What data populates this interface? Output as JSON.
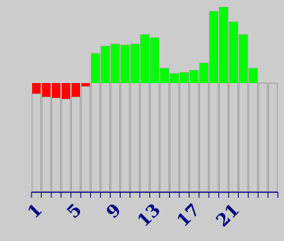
{
  "chart_data": {
    "type": "bar",
    "categories": [
      "1",
      "2",
      "3",
      "4",
      "5",
      "6",
      "7",
      "8",
      "9",
      "10",
      "11",
      "12",
      "13",
      "14",
      "15",
      "16",
      "17",
      "18",
      "19",
      "20",
      "21",
      "22",
      "23",
      "24",
      "25"
    ],
    "tick_labels": [
      "1",
      "5",
      "9",
      "13",
      "17",
      "21"
    ],
    "tick_label_categories": [
      1,
      5,
      9,
      13,
      17,
      21
    ],
    "baseline": 0,
    "reference_line": 10.3,
    "values": [
      9.3,
      9.0,
      8.9,
      8.8,
      9.0,
      10.0,
      13.1,
      13.8,
      14.0,
      13.9,
      14.0,
      14.9,
      14.6,
      11.7,
      11.2,
      11.3,
      11.5,
      12.2,
      17.1,
      17.5,
      16.1,
      14.9,
      11.7,
      10.3,
      10.3
    ],
    "ylim": [
      0,
      17.6
    ],
    "xlabel": "",
    "ylabel": "",
    "title": "",
    "grid": false,
    "legend": "none",
    "colors": {
      "background": "#cccccc",
      "bar_fill": "#cccccc",
      "bar_outline": "#999999",
      "above": "#00ff00",
      "below": "#ff0000",
      "axis": "#00007f"
    }
  }
}
